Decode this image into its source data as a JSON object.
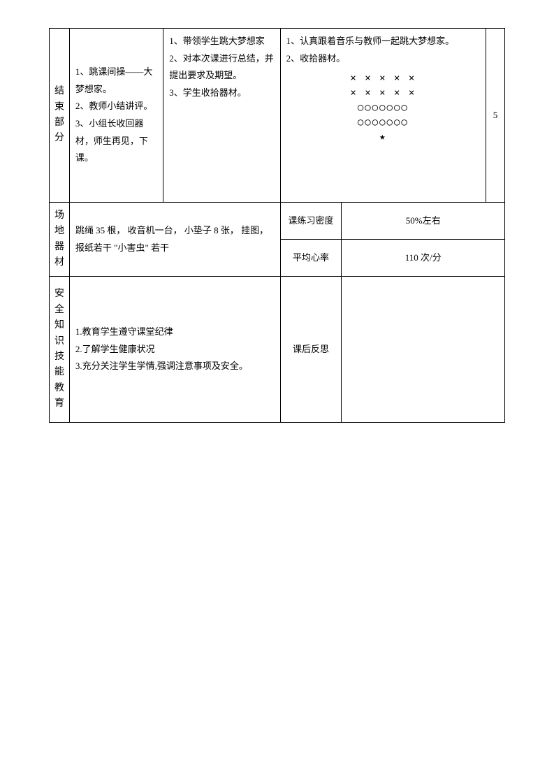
{
  "row1": {
    "label": "结束部分",
    "colA": "1、跳课间操——大梦想家。\n2、教师小结讲评。\n3、小组长收回器材，师生再见，下课。",
    "colB": "1、带领学生跳大梦想家\n2、对本次课进行总结，并提出要求及期望。\n3、学生收拾器材。",
    "colC_text": "1、认真跟着音乐与教师一起跳大梦想家。\n2、收拾器材。",
    "diagram_lines": [
      "× × × × ×",
      "× × × × ×",
      "○○○○○○○",
      "○○○○○○○",
      "★"
    ],
    "num": "5"
  },
  "row2": {
    "label": "场地器材",
    "content": "跳绳 35 根，  收音机一台，  小垫子 8 张，  挂图，  报纸若干  \"小害虫\" 若干",
    "metric1_label": "课练习密度",
    "metric1_value": "50%左右",
    "metric2_label": "平均心率",
    "metric2_value": "110 次/分"
  },
  "row3": {
    "label": "安全知识技能教育",
    "content": "1.教育学生遵守课堂纪律\n2.了解学生健康状况\n3.充分关注学生学情,强调注意事项及安全。",
    "reflect_label": "课后反思",
    "reflect_value": ""
  },
  "style": {
    "text_color": "#000000",
    "bg_color": "#ffffff",
    "border_color": "#000000",
    "font_size_pt": 10.5
  }
}
